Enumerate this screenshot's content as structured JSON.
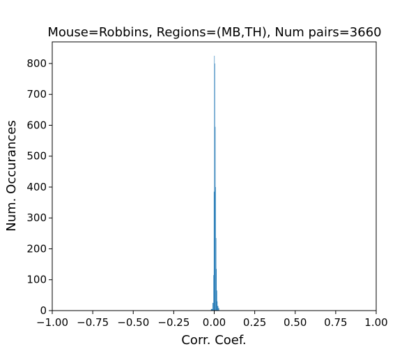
{
  "chart_data": {
    "type": "bar",
    "title": "Mouse=Robbins, Regions=(MB,TH), Num pairs=3660",
    "xlabel": "Corr. Coef.",
    "ylabel": "Num. Occurances",
    "xlim": [
      -1.0,
      1.0
    ],
    "ylim": [
      0,
      870
    ],
    "x_ticks": [
      -1.0,
      -0.75,
      -0.5,
      -0.25,
      0.0,
      0.25,
      0.5,
      0.75,
      1.0
    ],
    "x_tick_labels": [
      "−1.00",
      "−0.75",
      "−0.50",
      "−0.25",
      "0.00",
      "0.25",
      "0.50",
      "0.75",
      "1.00"
    ],
    "y_ticks": [
      0,
      100,
      200,
      300,
      400,
      500,
      600,
      700,
      800
    ],
    "y_tick_labels": [
      "0",
      "100",
      "200",
      "300",
      "400",
      "500",
      "600",
      "700",
      "800"
    ],
    "bar_color": "#1f77b4",
    "grid": false,
    "bins": [
      {
        "x0": -0.02,
        "x1": -0.01,
        "value": 5
      },
      {
        "x0": -0.01,
        "x1": -0.005,
        "value": 25
      },
      {
        "x0": -0.005,
        "x1": -0.0025,
        "value": 115
      },
      {
        "x0": -0.0025,
        "x1": 0.0,
        "value": 385
      },
      {
        "x0": 0.0,
        "x1": 0.0025,
        "value": 825
      },
      {
        "x0": 0.0025,
        "x1": 0.005,
        "value": 800
      },
      {
        "x0": 0.005,
        "x1": 0.0075,
        "value": 595
      },
      {
        "x0": 0.0075,
        "x1": 0.01,
        "value": 400
      },
      {
        "x0": 0.01,
        "x1": 0.0125,
        "value": 235
      },
      {
        "x0": 0.0125,
        "x1": 0.015,
        "value": 135
      },
      {
        "x0": 0.015,
        "x1": 0.0175,
        "value": 65
      },
      {
        "x0": 0.0175,
        "x1": 0.02,
        "value": 30
      },
      {
        "x0": 0.02,
        "x1": 0.025,
        "value": 15
      },
      {
        "x0": 0.025,
        "x1": 0.03,
        "value": 8
      }
    ]
  }
}
